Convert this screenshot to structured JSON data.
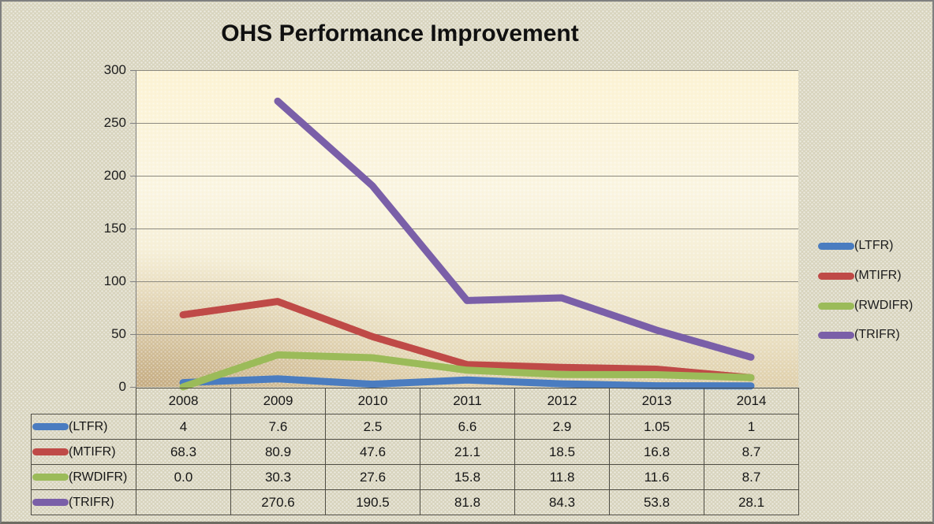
{
  "title": "OHS Performance Improvement",
  "chart_data": {
    "type": "line",
    "title": "OHS Performance Improvement",
    "categories": [
      "2008",
      "2009",
      "2010",
      "2011",
      "2012",
      "2013",
      "2014"
    ],
    "series": [
      {
        "name": "(LTFR)",
        "color": "#4a7cc0",
        "values": [
          4,
          7.6,
          2.5,
          6.6,
          2.9,
          1.05,
          1
        ]
      },
      {
        "name": "(MTIFR)",
        "color": "#bf4a47",
        "values": [
          68.3,
          80.9,
          47.6,
          21.1,
          18.5,
          16.8,
          8.7
        ]
      },
      {
        "name": "(RWDIFR)",
        "color": "#9bbb59",
        "values": [
          0.0,
          30.3,
          27.6,
          15.8,
          11.8,
          11.6,
          8.7
        ]
      },
      {
        "name": "(TRIFR)",
        "color": "#7a5fa8",
        "values": [
          null,
          270.6,
          190.5,
          81.8,
          84.3,
          53.8,
          28.1
        ]
      }
    ],
    "y_ticks": [
      0,
      50,
      100,
      150,
      200,
      250,
      300
    ],
    "ylim": [
      0,
      300
    ],
    "xlabel": "",
    "ylabel": "",
    "grid": "horizontal",
    "legend_position": "right",
    "data_table": {
      "rows": [
        {
          "label": "(LTFR)",
          "cells": [
            "4",
            "7.6",
            "2.5",
            "6.6",
            "2.9",
            "1.05",
            "1"
          ]
        },
        {
          "label": "(MTIFR)",
          "cells": [
            "68.3",
            "80.9",
            "47.6",
            "21.1",
            "18.5",
            "16.8",
            "8.7"
          ]
        },
        {
          "label": "(RWDIFR)",
          "cells": [
            "0.0",
            "30.3",
            "27.6",
            "15.8",
            "11.8",
            "11.6",
            "8.7"
          ]
        },
        {
          "label": "(TRIFR)",
          "cells": [
            "",
            "270.6",
            "190.5",
            "81.8",
            "84.3",
            "53.8",
            "28.1"
          ]
        }
      ]
    }
  }
}
